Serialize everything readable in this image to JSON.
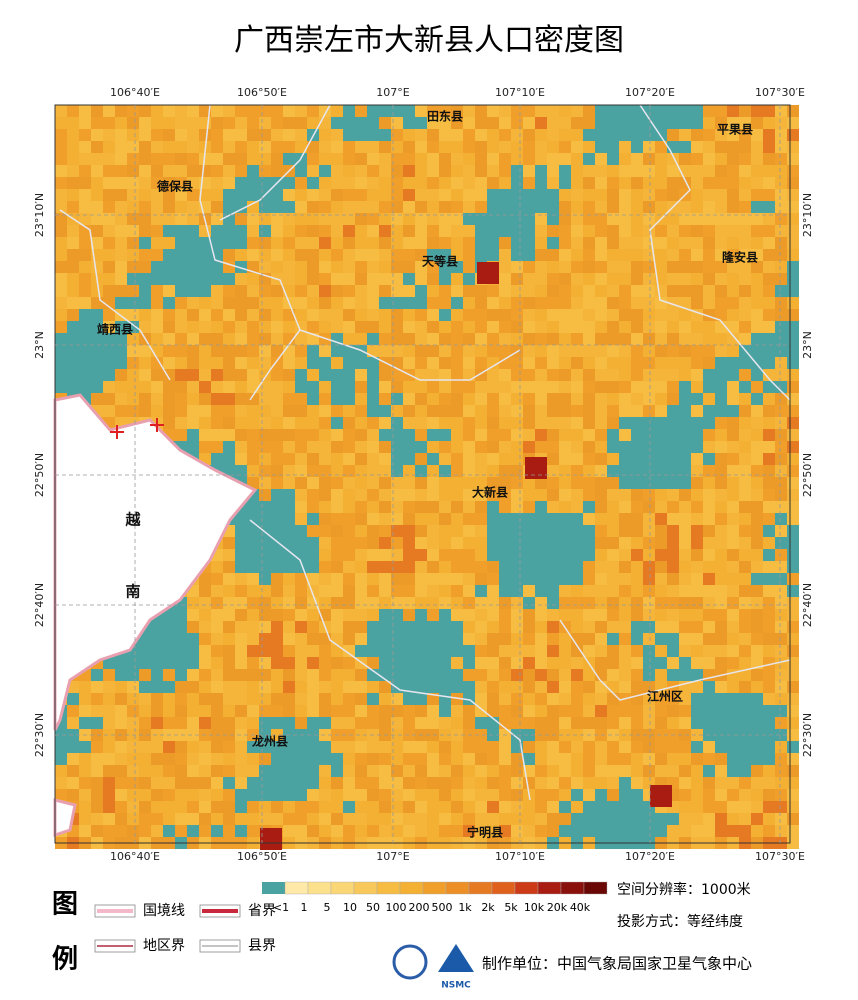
{
  "title": "广西崇左市大新县人口密度图",
  "top_lon_labels": [
    "106°40′E",
    "106°50′E",
    "107°E",
    "107°10′E",
    "107°20′E",
    "107°30′E"
  ],
  "bottom_lon_labels": [
    "106°40′E",
    "106°50′E",
    "107°E",
    "107°10′E",
    "107°20′E",
    "107°30′E"
  ],
  "left_lat_labels": [
    "23°10′N",
    "23°N",
    "22°50′N",
    "22°40′N",
    "22°30′N"
  ],
  "right_lat_labels": [
    "23°10′N",
    "23°N",
    "22°50′N",
    "22°40′N",
    "22°30′N"
  ],
  "places": [
    "田东县",
    "平果县",
    "德保县",
    "天等县",
    "隆安县",
    "靖西县",
    "大新县",
    "越",
    "南",
    "江州区",
    "龙州县",
    "宁明县"
  ],
  "legend": {
    "heading": [
      "图",
      "例"
    ],
    "lines": [
      "国境线",
      "省界",
      "地区界",
      "县界"
    ],
    "scale_labels": [
      "<1",
      "1",
      "5",
      "10",
      "50",
      "100",
      "200",
      "500",
      "1k",
      "2k",
      "5k",
      "10k",
      "20k",
      "40k"
    ],
    "scale_colors": [
      "#ffe9a8",
      "#fde08c",
      "#fbd676",
      "#f8c95a",
      "#f6bd42",
      "#f3b032",
      "#f0a02a",
      "#ec8f26",
      "#e67a22",
      "#e0601e",
      "#cc3a18",
      "#a81c12",
      "#8a100c",
      "#6a0806"
    ],
    "resolution": "空间分辨率：1000米",
    "projection": "投影方式：等经纬度",
    "producer": "制作单位：中国气象局国家卫星气象中心",
    "logo": "NSMC"
  }
}
